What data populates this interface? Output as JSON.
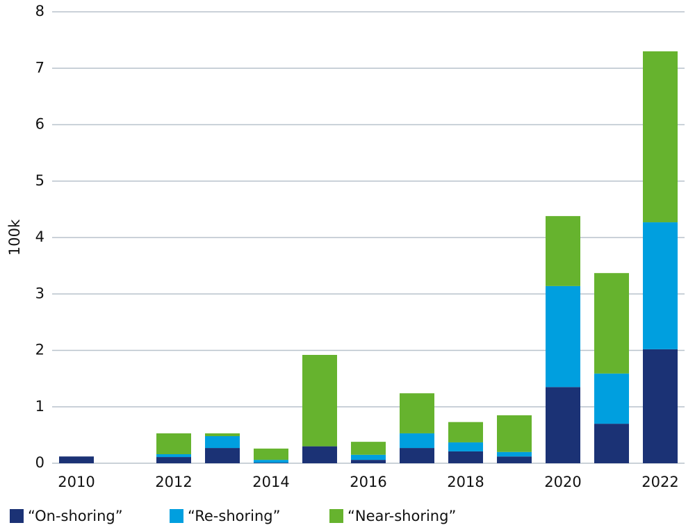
{
  "chart_data": {
    "type": "stacked-bar",
    "y_label": "100k",
    "categories": [
      "2010",
      null,
      "2012",
      null,
      "2014",
      null,
      "2016",
      null,
      "2018",
      null,
      "2020",
      null,
      "2022"
    ],
    "series": [
      {
        "name": "“On-shoring”",
        "color": "#1b3275",
        "values": [
          0.12,
          0,
          0.11,
          0.27,
          0.01,
          0.3,
          0.06,
          0.27,
          0.21,
          0.12,
          1.35,
          0.7,
          2.02
        ]
      },
      {
        "name": "“Re-shoring”",
        "color": "#009fdf",
        "values": [
          0,
          0,
          0.05,
          0.21,
          0.05,
          0,
          0.09,
          0.26,
          0.16,
          0.08,
          1.79,
          0.89,
          2.25
        ]
      },
      {
        "name": "“Near-shoring”",
        "color": "#66b32e",
        "values": [
          0,
          0,
          0.37,
          0.05,
          0.2,
          1.62,
          0.23,
          0.71,
          0.36,
          0.65,
          1.24,
          1.78,
          3.03
        ]
      }
    ],
    "ylim": [
      0,
      8
    ],
    "yticks": [
      0,
      1,
      2,
      3,
      4,
      5,
      6,
      7,
      8
    ],
    "grid": true
  }
}
